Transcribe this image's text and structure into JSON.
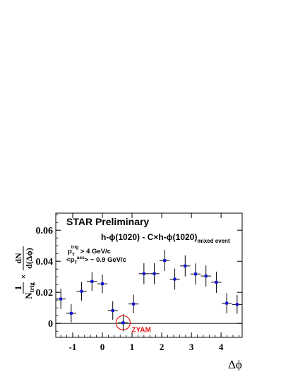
{
  "chart_data": {
    "type": "scatter",
    "title": "STAR Preliminary",
    "subtitle": "h-ϕ(1020) - C×h-ϕ(1020)",
    "subtitle_sub": "mixed event",
    "xlabel": "Δϕ",
    "ylabel": {
      "num_prefix": "1",
      "den_prefix": "N",
      "den_sub": "trig",
      "times": "×",
      "num": "dN",
      "den": "d(Δϕ)"
    },
    "xlim": [
      -1.57,
      4.71
    ],
    "ylim": [
      -0.009,
      0.071
    ],
    "x_ticks": [
      -1,
      0,
      1,
      2,
      3,
      4
    ],
    "x_tick_labels": [
      "-1",
      "0",
      "1",
      "2",
      "3",
      "4"
    ],
    "y_ticks": [
      0,
      0.02,
      0.04,
      0.06
    ],
    "y_tick_labels": [
      "0",
      "0.02",
      "0.04",
      "0.06"
    ],
    "cuts": [
      {
        "prefix": "p",
        "sup": "trig",
        "sub": "T",
        "suffix": "  > 4 GeV/c"
      },
      {
        "prefix": "<p",
        "sup": "",
        "sub": "T",
        "sub2": "ass",
        "suffix": "> ~ 0.9 GeV/c"
      }
    ],
    "annotation": {
      "text": "ZYAM",
      "x": 0.7,
      "y": 0.0004,
      "color": "#e81010"
    },
    "marker_color": "#1212d8",
    "series": [
      {
        "x": [
          -1.4,
          -1.05,
          -0.7,
          -0.35,
          0.0,
          0.35,
          0.7,
          1.05,
          1.4,
          1.75,
          2.1,
          2.44,
          2.79,
          3.14,
          3.49,
          3.84,
          4.19,
          4.54
        ],
        "y": [
          0.0157,
          0.0065,
          0.0207,
          0.027,
          0.0255,
          0.0083,
          0.0004,
          0.0125,
          0.032,
          0.032,
          0.0405,
          0.0285,
          0.037,
          0.0318,
          0.0305,
          0.0265,
          0.013,
          0.0122
        ],
        "yerr": [
          0.0065,
          0.0058,
          0.006,
          0.006,
          0.006,
          0.006,
          0.0055,
          0.006,
          0.0068,
          0.0068,
          0.0068,
          0.0068,
          0.0068,
          0.0068,
          0.0068,
          0.0068,
          0.0065,
          0.006
        ],
        "xerr": 0.17
      }
    ],
    "zero_line": true,
    "grid": false
  }
}
